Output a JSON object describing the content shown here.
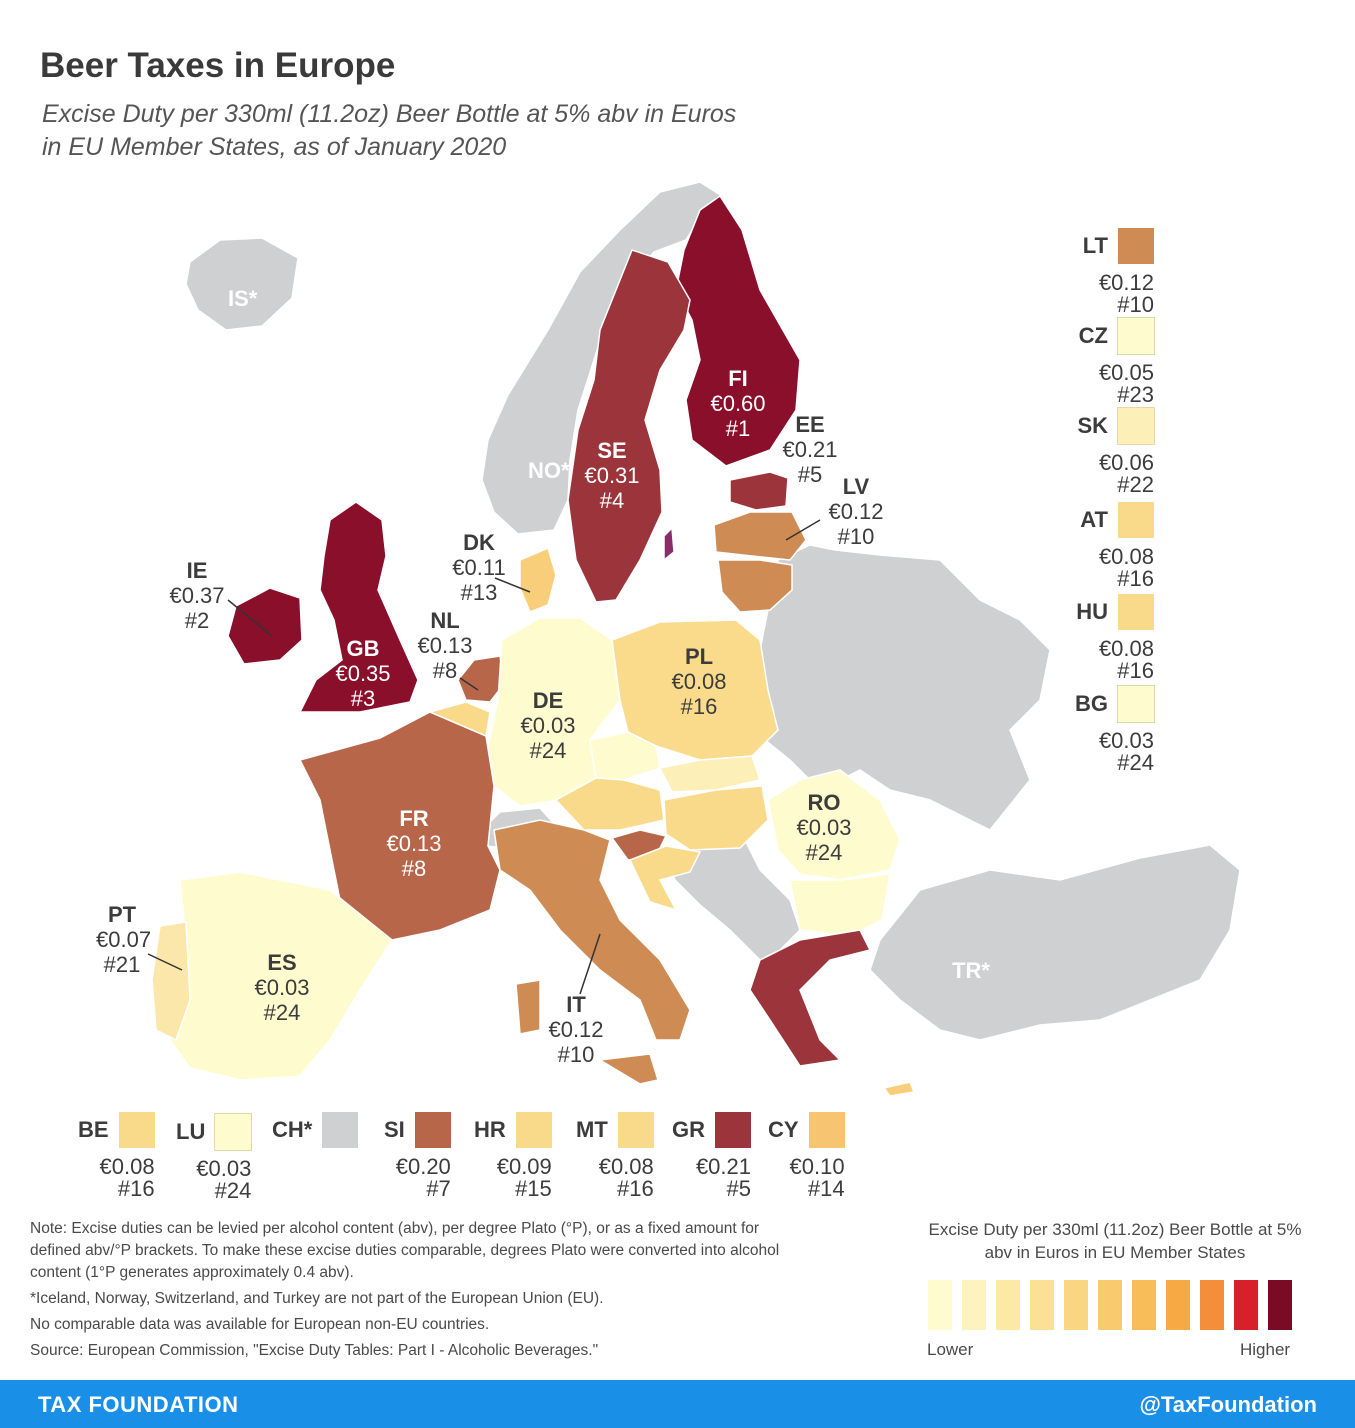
{
  "title": "Beer Taxes in Europe",
  "subtitle": [
    "Excise Duty per 330ml (11.2oz) Beer Bottle at 5% abv in Euros",
    "in EU Member States, as of January 2020"
  ],
  "colors": {
    "non_eu": "#cfd0d2",
    "tier1": "#fefccf",
    "tier2": "#fdefb8",
    "tier3": "#fbe7a9",
    "tier4": "#fadb8c",
    "tier5": "#f9ce7b",
    "tier6": "#cf8b54",
    "tier7": "#b7664a",
    "tier8": "#9c353b",
    "tier9": "#8a0f2a",
    "accent": "#1a8fe8"
  },
  "map_labels": {
    "is": "IS*",
    "no": "NO*",
    "tr": "TR*",
    "fi": {
      "code": "FI",
      "value": "€0.60",
      "rank": "#1"
    },
    "se": {
      "code": "SE",
      "value": "€0.31",
      "rank": "#4"
    },
    "ee": {
      "code": "EE",
      "value": "€0.21",
      "rank": "#5"
    },
    "lv": {
      "code": "LV",
      "value": "€0.12",
      "rank": "#10"
    },
    "dk": {
      "code": "DK",
      "value": "€0.11",
      "rank": "#13"
    },
    "ie": {
      "code": "IE",
      "value": "€0.37",
      "rank": "#2"
    },
    "gb": {
      "code": "GB",
      "value": "€0.35",
      "rank": "#3"
    },
    "nl": {
      "code": "NL",
      "value": "€0.13",
      "rank": "#8"
    },
    "pl": {
      "code": "PL",
      "value": "€0.08",
      "rank": "#16"
    },
    "de": {
      "code": "DE",
      "value": "€0.03",
      "rank": "#24"
    },
    "fr": {
      "code": "FR",
      "value": "€0.13",
      "rank": "#8"
    },
    "ro": {
      "code": "RO",
      "value": "€0.03",
      "rank": "#24"
    },
    "pt": {
      "code": "PT",
      "value": "€0.07",
      "rank": "#21"
    },
    "es": {
      "code": "ES",
      "value": "€0.03",
      "rank": "#24"
    },
    "it": {
      "code": "IT",
      "value": "€0.12",
      "rank": "#10"
    }
  },
  "side_legend": [
    {
      "code": "LT",
      "value": "€0.12",
      "rank": "#10",
      "color": "#cf8b54"
    },
    {
      "code": "CZ",
      "value": "€0.05",
      "rank": "#23",
      "color": "#fefccf"
    },
    {
      "code": "SK",
      "value": "€0.06",
      "rank": "#22",
      "color": "#fdefb8"
    },
    {
      "code": "AT",
      "value": "€0.08",
      "rank": "#16",
      "color": "#f9d98a"
    },
    {
      "code": "HU",
      "value": "€0.08",
      "rank": "#16",
      "color": "#f9d98a"
    },
    {
      "code": "BG",
      "value": "€0.03",
      "rank": "#24",
      "color": "#fefccf"
    }
  ],
  "bottom_legend": [
    {
      "code": "BE",
      "value": "€0.08",
      "rank": "#16",
      "color": "#f9d98a"
    },
    {
      "code": "LU",
      "value": "€0.03",
      "rank": "#24",
      "color": "#fefccf"
    },
    {
      "code": "CH*",
      "value": "",
      "rank": "",
      "color": "#cfd0d2"
    },
    {
      "code": "SI",
      "value": "€0.20",
      "rank": "#7",
      "color": "#b7664a"
    },
    {
      "code": "HR",
      "value": "€0.09",
      "rank": "#15",
      "color": "#f9d98a"
    },
    {
      "code": "MT",
      "value": "€0.08",
      "rank": "#16",
      "color": "#f9d98a"
    },
    {
      "code": "GR",
      "value": "€0.21",
      "rank": "#5",
      "color": "#9c353b"
    },
    {
      "code": "CY",
      "value": "€0.10",
      "rank": "#14",
      "color": "#f7c572"
    }
  ],
  "notes": [
    "Note: Excise duties can be levied per alcohol content (abv), per degree Plato (°P), or as a fixed amount for defined abv/°P brackets. To make these excise duties comparable, degrees Plato were converted into alcohol content (1°P generates approximately 0.4 abv).",
    "*Iceland, Norway, Switzerland, and Turkey are not part of the European Union (EU).",
    "No comparable data was available for European non-EU countries.",
    "Source: European Commission, \"Excise Duty Tables: Part I - Alcoholic Beverages.\""
  ],
  "color_legend": {
    "title": "Excise Duty per 330ml (11.2oz) Beer Bottle at 5% abv in Euros in EU Member States",
    "low": "Lower",
    "high": "Higher",
    "swatches": [
      "#fefccf",
      "#fdf3bd",
      "#fce9a6",
      "#fbe096",
      "#fad683",
      "#f9cb6e",
      "#f8bd58",
      "#f7a943",
      "#f48e3a",
      "#d8202a",
      "#7b0b25"
    ]
  },
  "footer": {
    "left": "TAX FOUNDATION",
    "right": "@TaxFoundation"
  }
}
